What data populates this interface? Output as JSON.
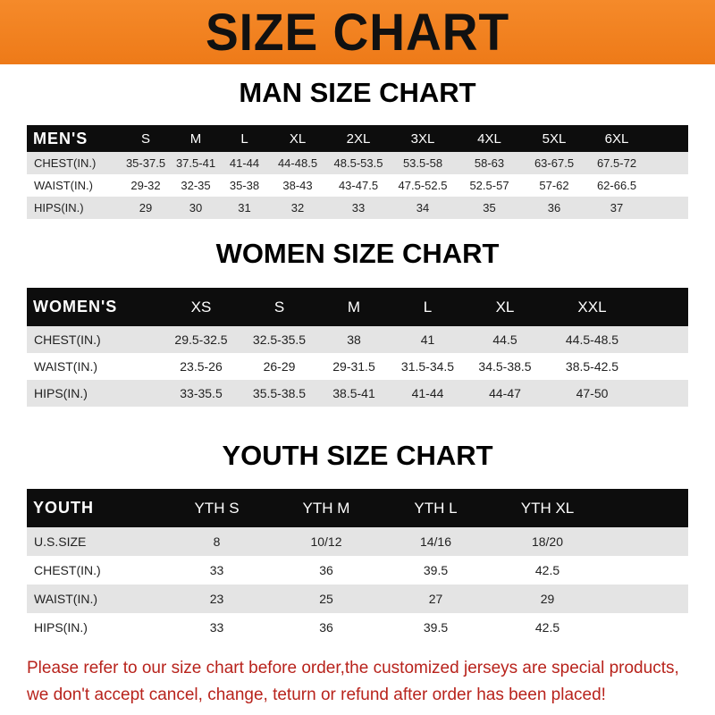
{
  "banner_title": "SIZE CHART",
  "men": {
    "title": "MAN SIZE CHART",
    "header": [
      "MEN'S",
      "S",
      "M",
      "L",
      "XL",
      "2XL",
      "3XL",
      "4XL",
      "5XL",
      "6XL"
    ],
    "rows": [
      [
        "CHEST(IN.)",
        "35-37.5",
        "37.5-41",
        "41-44",
        "44-48.5",
        "48.5-53.5",
        "53.5-58",
        "58-63",
        "63-67.5",
        "67.5-72"
      ],
      [
        "WAIST(IN.)",
        "29-32",
        "32-35",
        "35-38",
        "38-43",
        "43-47.5",
        "47.5-52.5",
        "52.5-57",
        "57-62",
        "62-66.5"
      ],
      [
        "HIPS(IN.)",
        "29",
        "30",
        "31",
        "32",
        "33",
        "34",
        "35",
        "36",
        "37"
      ]
    ]
  },
  "women": {
    "title": "WOMEN SIZE CHART",
    "header": [
      "WOMEN'S",
      "XS",
      "S",
      "M",
      "L",
      "XL",
      "XXL"
    ],
    "rows": [
      [
        "CHEST(IN.)",
        "29.5-32.5",
        "32.5-35.5",
        "38",
        "41",
        "44.5",
        "44.5-48.5"
      ],
      [
        "WAIST(IN.)",
        "23.5-26",
        "26-29",
        "29-31.5",
        "31.5-34.5",
        "34.5-38.5",
        "38.5-42.5"
      ],
      [
        "HIPS(IN.)",
        "33-35.5",
        "35.5-38.5",
        "38.5-41",
        "41-44",
        "44-47",
        "47-50"
      ]
    ]
  },
  "youth": {
    "title": "YOUTH SIZE CHART",
    "header": [
      "YOUTH",
      "YTH S",
      "YTH M",
      "YTH L",
      "YTH XL"
    ],
    "rows": [
      [
        "U.S.SIZE",
        "8",
        "10/12",
        "14/16",
        "18/20"
      ],
      [
        "CHEST(IN.)",
        "33",
        "36",
        "39.5",
        "42.5"
      ],
      [
        "WAIST(IN.)",
        "23",
        "25",
        "27",
        "29"
      ],
      [
        "HIPS(IN.)",
        "33",
        "36",
        "39.5",
        "42.5"
      ]
    ]
  },
  "note": [
    "Please refer to our size chart before order,the customized jerseys are special products,",
    "we don't accept cancel, change, teturn or refund after order has been placed!"
  ],
  "colors": {
    "banner": "#f08020",
    "header_row": "#0d0d0d",
    "stripe": "#e4e4e4",
    "note": "#b8231c"
  }
}
